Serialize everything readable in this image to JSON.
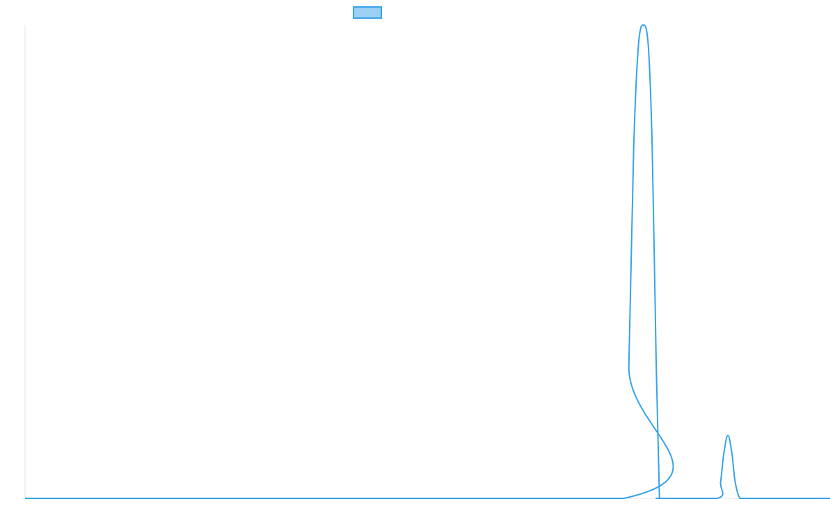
{
  "chart_data": {
    "type": "line",
    "title": "",
    "xlabel": "",
    "ylabel": "",
    "xlim": [
      0,
      100
    ],
    "ylim": [
      0,
      100
    ],
    "grid": false,
    "legend": {
      "position": "top-center",
      "entries": [
        {
          "name": "",
          "fill": "#9bd0f5",
          "stroke": "#36a2eb"
        }
      ]
    },
    "series": [
      {
        "name": "",
        "color": "#36a2eb",
        "x": [
          0,
          74.4,
          75.0,
          75.6,
          76.2,
          76.8,
          77.4,
          77.9,
          78.4,
          78.8,
          79.0,
          86.0,
          86.4,
          86.8,
          87.3,
          87.8,
          88.2,
          88.8,
          89.6,
          90.2,
          100
        ],
        "y": [
          0,
          0,
          28,
          74,
          96,
          100,
          96,
          74,
          28,
          0,
          0,
          0,
          3.5,
          9.5,
          13.3,
          9.5,
          3.5,
          0,
          0,
          0,
          0
        ]
      }
    ]
  }
}
